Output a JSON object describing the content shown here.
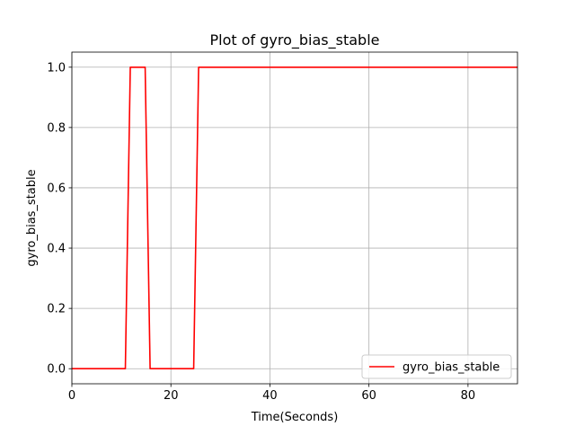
{
  "chart_data": {
    "type": "line",
    "title": "Plot of gyro_bias_stable",
    "xlabel": "Time(Seconds)",
    "ylabel": "gyro_bias_stable",
    "xlim": [
      0,
      90
    ],
    "ylim": [
      -0.05,
      1.05
    ],
    "x_ticks": [
      0,
      20,
      40,
      60,
      80
    ],
    "x_tick_labels": [
      "0",
      "20",
      "40",
      "60",
      "80"
    ],
    "y_ticks": [
      0.0,
      0.2,
      0.4,
      0.6,
      0.8,
      1.0
    ],
    "y_tick_labels": [
      "0.0",
      "0.2",
      "0.4",
      "0.6",
      "0.8",
      "1.0"
    ],
    "grid": true,
    "legend_position": "lower-right",
    "series": [
      {
        "name": "gyro_bias_stable",
        "color": "#ff0000",
        "x": [
          0,
          10.8,
          11.8,
          14.8,
          15.8,
          24.6,
          25.6,
          90
        ],
        "y": [
          0,
          0,
          1,
          1,
          0,
          0,
          1,
          1
        ]
      }
    ]
  }
}
